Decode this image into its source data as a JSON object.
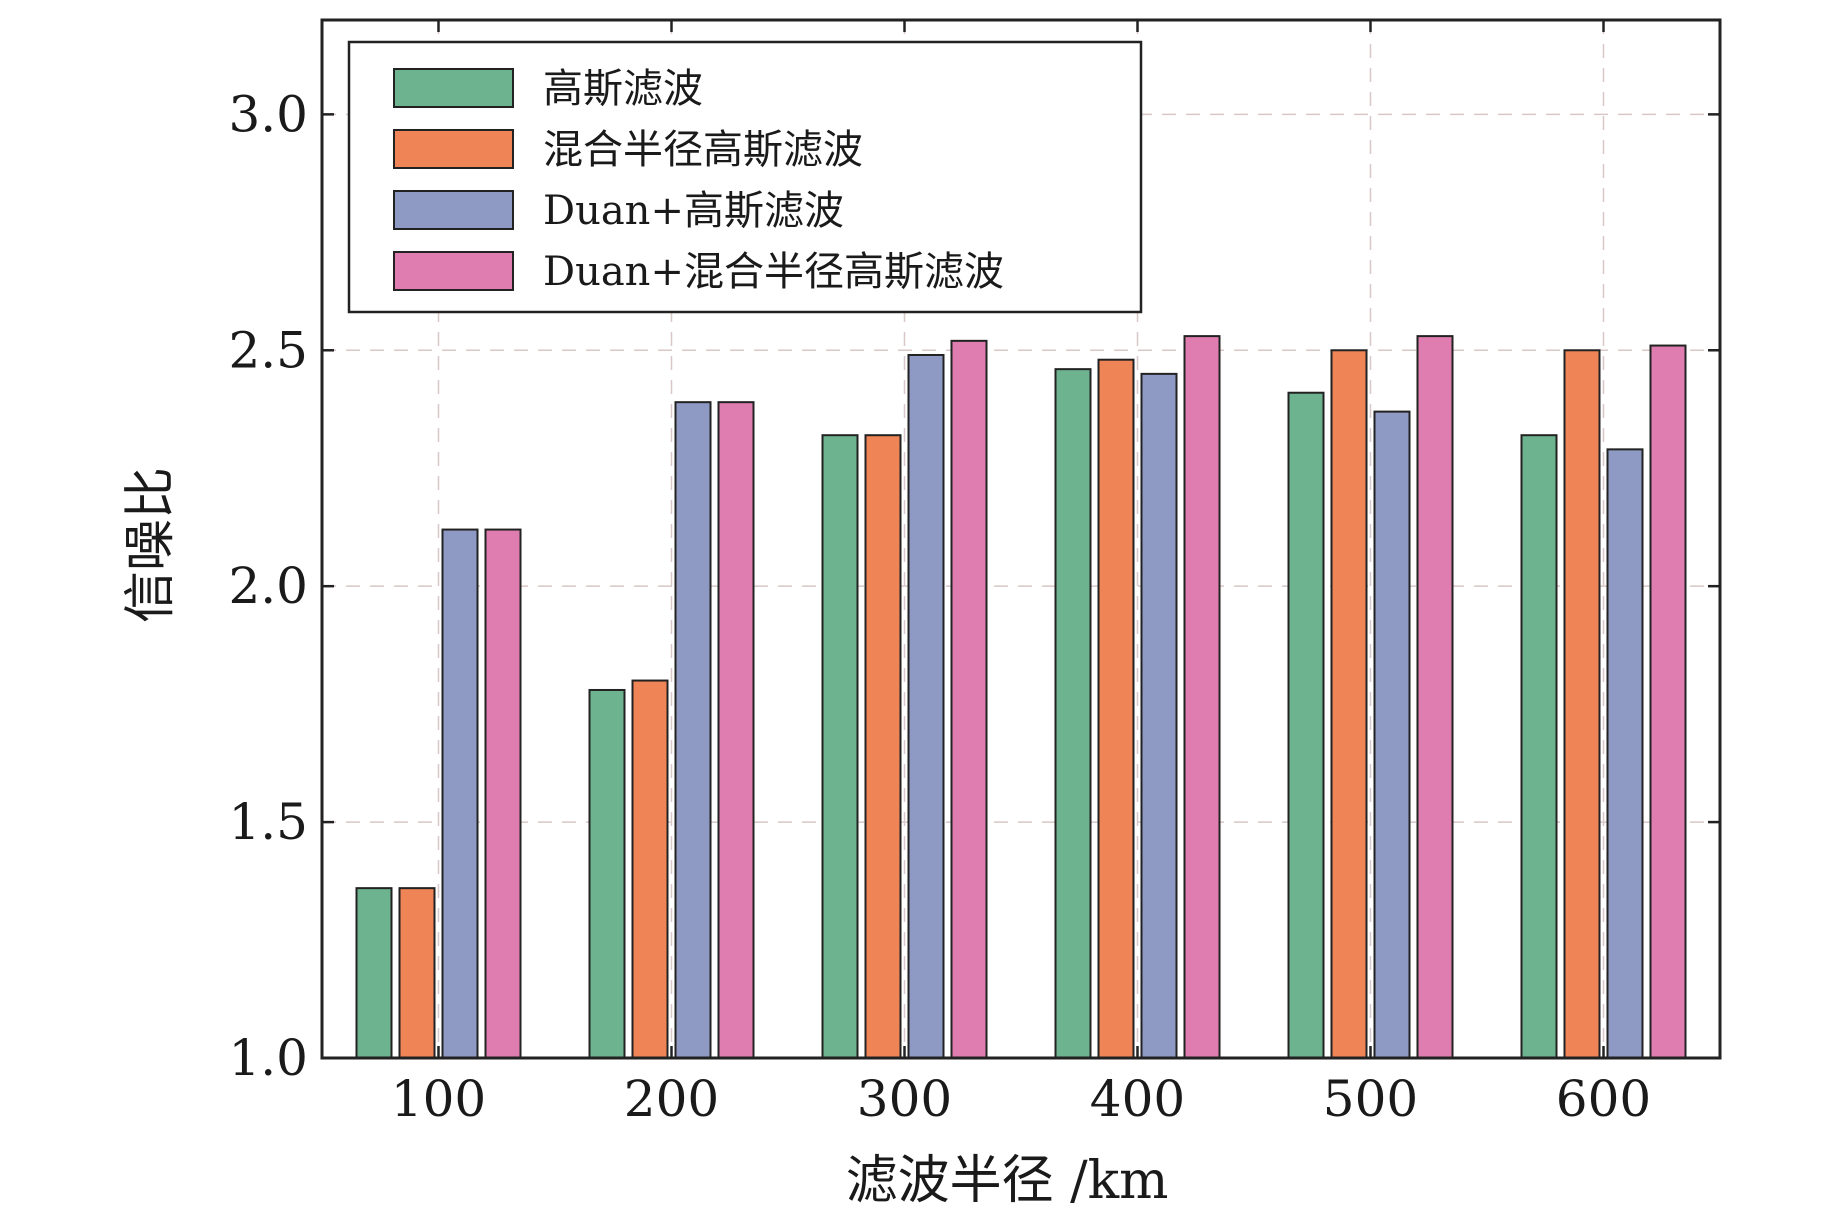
{
  "chart_data": {
    "type": "bar",
    "xlabel": "滤波半径 /km",
    "ylabel": "信噪比",
    "categories": [
      "100",
      "200",
      "300",
      "400",
      "500",
      "600"
    ],
    "ylim": [
      1.0,
      3.2
    ],
    "yticks": [
      "1.0",
      "1.5",
      "2.0",
      "2.5",
      "3.0"
    ],
    "ytick_values": [
      1.0,
      1.5,
      2.0,
      2.5,
      3.0
    ],
    "grid": true,
    "legend_position": "top-left",
    "series": [
      {
        "name": "高斯滤波",
        "color": "#6db38f",
        "values": [
          1.36,
          1.78,
          2.32,
          2.46,
          2.41,
          2.32
        ]
      },
      {
        "name": "混合半径高斯滤波",
        "color": "#ef8456",
        "values": [
          1.36,
          1.8,
          2.32,
          2.48,
          2.5,
          2.5
        ]
      },
      {
        "name": "Duan+高斯滤波",
        "color": "#8f9ac4",
        "values": [
          2.12,
          2.39,
          2.49,
          2.45,
          2.37,
          2.29
        ]
      },
      {
        "name": "Duan+混合半径高斯滤波",
        "color": "#e07db0",
        "values": [
          2.12,
          2.39,
          2.52,
          2.53,
          2.53,
          2.51
        ]
      }
    ]
  }
}
